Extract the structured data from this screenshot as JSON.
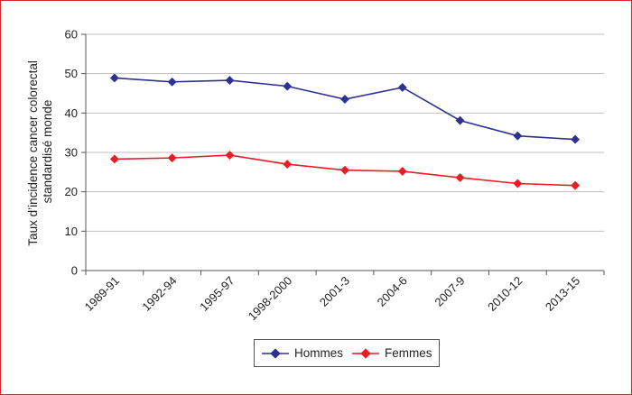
{
  "chart_data": {
    "type": "line",
    "categories": [
      "1989-91",
      "1992-94",
      "1995-97",
      "1998-2000",
      "2001-3",
      "2004-6",
      "2007-9",
      "2010-12",
      "2013-15"
    ],
    "series": [
      {
        "name": "Hommes",
        "color": "#2e3192",
        "values": [
          48.9,
          47.9,
          48.3,
          46.8,
          43.5,
          46.5,
          38.1,
          34.2,
          33.3
        ]
      },
      {
        "name": "Femmes",
        "color": "#ec1c24",
        "values": [
          28.3,
          28.6,
          29.3,
          27.0,
          25.5,
          25.2,
          23.6,
          22.1,
          21.6
        ]
      }
    ],
    "ylabel_lines": [
      "Taux d’incidence cancer colorectal",
      "standardisé monde"
    ],
    "ylim": [
      0,
      60
    ],
    "yticks": [
      0,
      10,
      20,
      30,
      40,
      50,
      60
    ],
    "grid": true,
    "legend_position": "bottom"
  }
}
